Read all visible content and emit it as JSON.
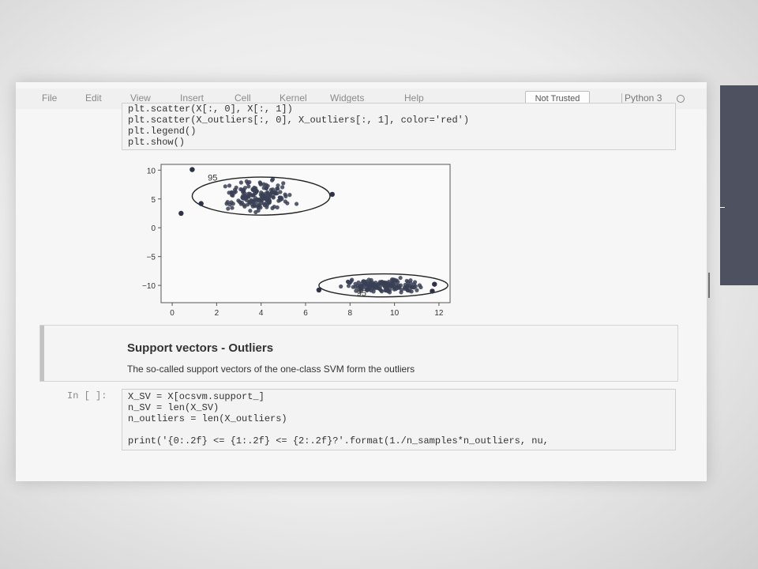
{
  "menubar": {
    "items": [
      "File",
      "Edit",
      "View",
      "Insert",
      "Cell",
      "Kernel",
      "Widgets",
      "Help"
    ],
    "trusted_label": "Not Trusted",
    "kernel_name": "Python 3"
  },
  "cell_top": {
    "lines": [
      "plt.scatter(X[:, 0], X[:, 1])",
      "plt.scatter(X_outliers[:, 0], X_outliers[:, 1], color='red')",
      "plt.legend()",
      "plt.show()"
    ]
  },
  "chart_data": {
    "type": "scatter",
    "x_ticks": [
      "0",
      "2",
      "4",
      "6",
      "8",
      "10",
      "12"
    ],
    "y_ticks": [
      "10",
      "5",
      "0",
      "−5",
      "−10"
    ],
    "xlim": [
      -0.5,
      12.5
    ],
    "ylim": [
      -13,
      11
    ],
    "contour_labels": [
      "95",
      "95"
    ],
    "clusters": [
      {
        "center": [
          4,
          5.5
        ],
        "spread": [
          2,
          3.5
        ],
        "contour_rx": 3.1,
        "contour_ry": 3.3
      },
      {
        "center": [
          9.5,
          -10
        ],
        "spread": [
          2.2,
          1.7
        ],
        "contour_rx": 2.9,
        "contour_ry": 2.0
      }
    ],
    "outliers": [
      [
        0.9,
        10.1
      ],
      [
        0.4,
        2.5
      ],
      [
        7.2,
        5.8
      ],
      [
        11.8,
        -9.8
      ],
      [
        11.7,
        -11
      ],
      [
        6.6,
        -10.8
      ],
      [
        1.3,
        4.2
      ]
    ]
  },
  "markdown_cell": {
    "title": "Support vectors - Outliers",
    "text": "The so-called support vectors of the one-class SVM form the outliers"
  },
  "cell_bottom": {
    "prompt": "In [ ]:",
    "lines": [
      "X_SV = X[ocsvm.support_]",
      "n_SV = len(X_SV)",
      "n_outliers = len(X_outliers)",
      "",
      "print('{0:.2f} <= {1:.2f} <= {2:.2f}?'.format(1./n_samples*n_outliers, nu,"
    ]
  }
}
